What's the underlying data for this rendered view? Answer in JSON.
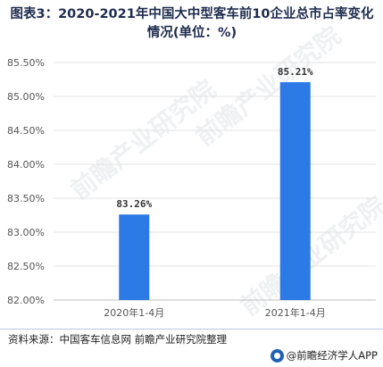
{
  "title": "图表3：2020-2021年中国大中型客车前10企业总市占率变化情况(单位：%)",
  "source": "资料来源：中国客车信息网 前瞻产业研究院整理",
  "brand": "@前瞻经济学人APP",
  "watermark": "前瞻产业研究院",
  "colors": {
    "bar": "#2b7ae5",
    "title": "#1f2d4e",
    "grid": "#e3e3e3",
    "axis_text": "#555555"
  },
  "chart_data": {
    "type": "bar",
    "categories": [
      "2020年1-4月",
      "2021年1-4月"
    ],
    "values": [
      83.26,
      85.21
    ],
    "value_labels": [
      "83.26%",
      "85.21%"
    ],
    "ylim": [
      82.0,
      85.5
    ],
    "yticks": [
      82.0,
      82.5,
      83.0,
      83.5,
      84.0,
      84.5,
      85.0,
      85.5
    ],
    "ytick_labels": [
      "82.00%",
      "82.50%",
      "83.00%",
      "83.50%",
      "84.00%",
      "84.50%",
      "85.00%",
      "85.50%"
    ],
    "grid": true
  }
}
